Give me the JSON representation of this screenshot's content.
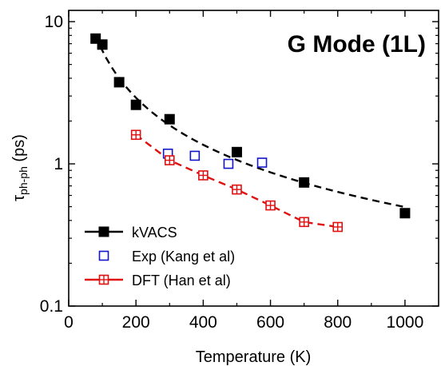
{
  "chart_data": {
    "type": "scatter",
    "title": "G Mode (1L)",
    "xlabel": "Temperature (K)",
    "ylabel": {
      "symbol": "τ",
      "subscript": "ph-ph",
      "unit": " (ps)"
    },
    "xlim": [
      0,
      1100
    ],
    "ylim": [
      0.1,
      12
    ],
    "yscale": "log",
    "xticks": [
      0,
      200,
      400,
      600,
      800,
      1000
    ],
    "xtick_labels": [
      "0",
      "200",
      "400",
      "600",
      "800",
      "1000"
    ],
    "yticks": [
      0.1,
      1,
      10
    ],
    "ytick_labels": [
      "0.1",
      "1",
      "10"
    ],
    "grid": false,
    "legend_position": "bottom-left",
    "series": [
      {
        "name": "kVACS",
        "marker": "filled-square",
        "color": "#000000",
        "line": "dashed-fit",
        "x": [
          80,
          100,
          150,
          200,
          300,
          500,
          700,
          1000
        ],
        "y": [
          7.6,
          6.9,
          3.75,
          2.6,
          2.06,
          1.21,
          0.74,
          0.45
        ]
      },
      {
        "name": "Exp (Kang et al)",
        "marker": "open-square",
        "color": "#1414c8",
        "line": "none",
        "x": [
          295,
          375,
          475,
          575
        ],
        "y": [
          1.18,
          1.14,
          1.0,
          1.02
        ]
      },
      {
        "name": "DFT (Han et al)",
        "marker": "crossed-square",
        "color": "#e01010",
        "line": "dashed",
        "x": [
          200,
          300,
          400,
          500,
          600,
          700,
          800
        ],
        "y": [
          1.6,
          1.06,
          0.83,
          0.66,
          0.51,
          0.39,
          0.36
        ]
      }
    ]
  }
}
